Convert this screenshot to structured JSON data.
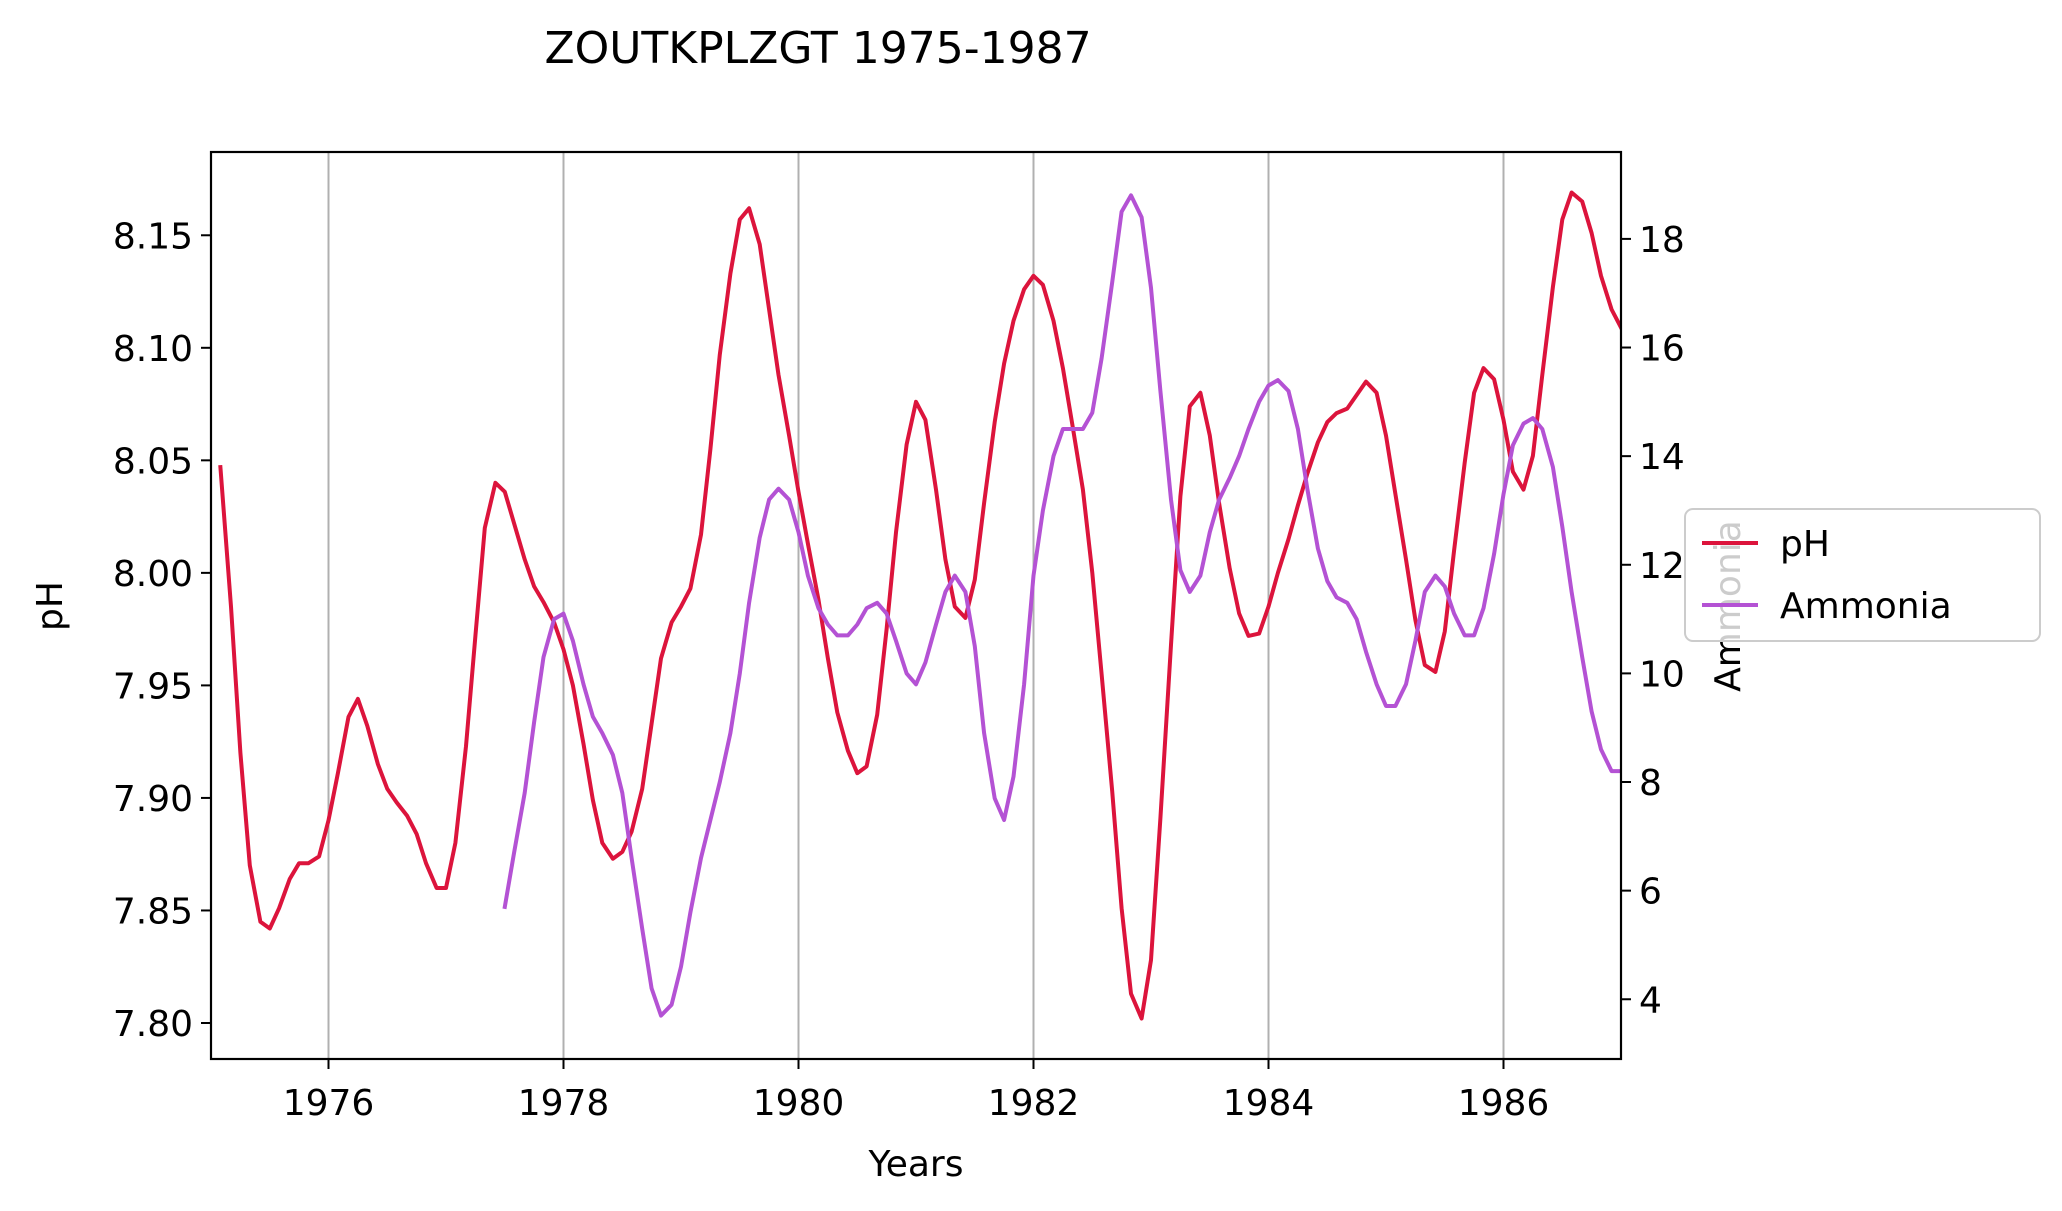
{
  "chart_data": {
    "type": "line",
    "title": "ZOUTKPLZGT 1975-1987",
    "xlabel": "Years",
    "ylabel_left": "pH",
    "ylabel_right": "Ammonia",
    "xlim": [
      1975.0,
      1987.0
    ],
    "ylim_left": [
      7.784,
      8.187
    ],
    "ylim_right": [
      2.9,
      19.6
    ],
    "x_ticks": [
      1976,
      1978,
      1980,
      1982,
      1984,
      1986
    ],
    "x_tick_labels": [
      "1976",
      "1978",
      "1980",
      "1982",
      "1984",
      "1986"
    ],
    "y_left_ticks": [
      7.8,
      7.85,
      7.9,
      7.95,
      8.0,
      8.05,
      8.1,
      8.15
    ],
    "y_left_tick_labels": [
      "7.80",
      "7.85",
      "7.90",
      "7.95",
      "8.00",
      "8.05",
      "8.10",
      "8.15"
    ],
    "y_right_ticks": [
      4,
      6,
      8,
      10,
      12,
      14,
      16,
      18
    ],
    "y_right_tick_labels": [
      "4",
      "6",
      "8",
      "10",
      "12",
      "14",
      "16",
      "18"
    ],
    "grid": "vertical at x ticks",
    "legend_placement": "right, outside plot",
    "series": [
      {
        "name": "pH",
        "axis": "left",
        "color": "#dc143c",
        "points": [
          [
            1975.08,
            8.047
          ],
          [
            1975.17,
            7.985
          ],
          [
            1975.25,
            7.92
          ],
          [
            1975.33,
            7.87
          ],
          [
            1975.42,
            7.845
          ],
          [
            1975.5,
            7.842
          ],
          [
            1975.58,
            7.851
          ],
          [
            1975.67,
            7.864
          ],
          [
            1975.75,
            7.871
          ],
          [
            1975.83,
            7.871
          ],
          [
            1975.92,
            7.874
          ],
          [
            1976.0,
            7.89
          ],
          [
            1976.08,
            7.911
          ],
          [
            1976.17,
            7.936
          ],
          [
            1976.25,
            7.944
          ],
          [
            1976.33,
            7.932
          ],
          [
            1976.42,
            7.915
          ],
          [
            1976.5,
            7.904
          ],
          [
            1976.58,
            7.898
          ],
          [
            1976.67,
            7.892
          ],
          [
            1976.75,
            7.884
          ],
          [
            1976.83,
            7.871
          ],
          [
            1976.92,
            7.86
          ],
          [
            1977.0,
            7.86
          ],
          [
            1977.08,
            7.88
          ],
          [
            1977.17,
            7.923
          ],
          [
            1977.25,
            7.972
          ],
          [
            1977.33,
            8.02
          ],
          [
            1977.42,
            8.04
          ],
          [
            1977.5,
            8.036
          ],
          [
            1977.58,
            8.022
          ],
          [
            1977.67,
            8.006
          ],
          [
            1977.75,
            7.994
          ],
          [
            1977.83,
            7.987
          ],
          [
            1977.92,
            7.978
          ],
          [
            1978.0,
            7.966
          ],
          [
            1978.08,
            7.95
          ],
          [
            1978.17,
            7.924
          ],
          [
            1978.25,
            7.899
          ],
          [
            1978.33,
            7.88
          ],
          [
            1978.42,
            7.873
          ],
          [
            1978.5,
            7.876
          ],
          [
            1978.58,
            7.885
          ],
          [
            1978.67,
            7.904
          ],
          [
            1978.75,
            7.933
          ],
          [
            1978.83,
            7.962
          ],
          [
            1978.92,
            7.978
          ],
          [
            1979.0,
            7.985
          ],
          [
            1979.08,
            7.993
          ],
          [
            1979.17,
            8.017
          ],
          [
            1979.25,
            8.055
          ],
          [
            1979.33,
            8.097
          ],
          [
            1979.42,
            8.133
          ],
          [
            1979.5,
            8.157
          ],
          [
            1979.58,
            8.162
          ],
          [
            1979.67,
            8.146
          ],
          [
            1979.75,
            8.117
          ],
          [
            1979.83,
            8.088
          ],
          [
            1979.92,
            8.061
          ],
          [
            1980.0,
            8.036
          ],
          [
            1980.08,
            8.013
          ],
          [
            1980.17,
            7.988
          ],
          [
            1980.25,
            7.962
          ],
          [
            1980.33,
            7.938
          ],
          [
            1980.42,
            7.921
          ],
          [
            1980.5,
            7.911
          ],
          [
            1980.58,
            7.914
          ],
          [
            1980.67,
            7.937
          ],
          [
            1980.75,
            7.975
          ],
          [
            1980.83,
            8.018
          ],
          [
            1980.92,
            8.057
          ],
          [
            1981.0,
            8.076
          ],
          [
            1981.08,
            8.068
          ],
          [
            1981.17,
            8.037
          ],
          [
            1981.25,
            8.006
          ],
          [
            1981.33,
            7.985
          ],
          [
            1981.42,
            7.98
          ],
          [
            1981.5,
            7.997
          ],
          [
            1981.58,
            8.031
          ],
          [
            1981.67,
            8.067
          ],
          [
            1981.75,
            8.093
          ],
          [
            1981.83,
            8.112
          ],
          [
            1981.92,
            8.126
          ],
          [
            1982.0,
            8.132
          ],
          [
            1982.08,
            8.128
          ],
          [
            1982.17,
            8.112
          ],
          [
            1982.25,
            8.091
          ],
          [
            1982.33,
            8.066
          ],
          [
            1982.42,
            8.037
          ],
          [
            1982.5,
            8.0
          ],
          [
            1982.58,
            7.955
          ],
          [
            1982.67,
            7.903
          ],
          [
            1982.75,
            7.851
          ],
          [
            1982.83,
            7.813
          ],
          [
            1982.92,
            7.802
          ],
          [
            1983.0,
            7.828
          ],
          [
            1983.08,
            7.891
          ],
          [
            1983.17,
            7.968
          ],
          [
            1983.25,
            8.034
          ],
          [
            1983.33,
            8.074
          ],
          [
            1983.42,
            8.08
          ],
          [
            1983.5,
            8.061
          ],
          [
            1983.58,
            8.031
          ],
          [
            1983.67,
            8.002
          ],
          [
            1983.75,
            7.982
          ],
          [
            1983.83,
            7.972
          ],
          [
            1983.92,
            7.973
          ],
          [
            1984.0,
            7.985
          ],
          [
            1984.08,
            8.0
          ],
          [
            1984.17,
            8.015
          ],
          [
            1984.25,
            8.03
          ],
          [
            1984.33,
            8.044
          ],
          [
            1984.42,
            8.058
          ],
          [
            1984.5,
            8.067
          ],
          [
            1984.58,
            8.071
          ],
          [
            1984.67,
            8.073
          ],
          [
            1984.75,
            8.079
          ],
          [
            1984.83,
            8.085
          ],
          [
            1984.92,
            8.08
          ],
          [
            1985.0,
            8.061
          ],
          [
            1985.08,
            8.035
          ],
          [
            1985.17,
            8.006
          ],
          [
            1985.25,
            7.979
          ],
          [
            1985.33,
            7.959
          ],
          [
            1985.42,
            7.956
          ],
          [
            1985.5,
            7.974
          ],
          [
            1985.58,
            8.01
          ],
          [
            1985.67,
            8.049
          ],
          [
            1985.75,
            8.08
          ],
          [
            1985.83,
            8.091
          ],
          [
            1985.92,
            8.086
          ],
          [
            1986.0,
            8.068
          ],
          [
            1986.08,
            8.045
          ],
          [
            1986.17,
            8.037
          ],
          [
            1986.25,
            8.052
          ],
          [
            1986.33,
            8.088
          ],
          [
            1986.42,
            8.127
          ],
          [
            1986.5,
            8.157
          ],
          [
            1986.58,
            8.169
          ],
          [
            1986.67,
            8.165
          ],
          [
            1986.75,
            8.151
          ],
          [
            1986.83,
            8.132
          ],
          [
            1986.92,
            8.117
          ],
          [
            1987.0,
            8.109
          ]
        ]
      },
      {
        "name": "Ammonia",
        "axis": "right",
        "color": "#b452d4",
        "points": [
          [
            1977.5,
            5.7
          ],
          [
            1977.58,
            6.7
          ],
          [
            1977.67,
            7.8
          ],
          [
            1977.75,
            9.1
          ],
          [
            1977.83,
            10.3
          ],
          [
            1977.92,
            11.0
          ],
          [
            1978.0,
            11.1
          ],
          [
            1978.08,
            10.6
          ],
          [
            1978.17,
            9.8
          ],
          [
            1978.25,
            9.2
          ],
          [
            1978.33,
            8.9
          ],
          [
            1978.42,
            8.5
          ],
          [
            1978.5,
            7.8
          ],
          [
            1978.58,
            6.6
          ],
          [
            1978.67,
            5.3
          ],
          [
            1978.75,
            4.2
          ],
          [
            1978.83,
            3.7
          ],
          [
            1978.92,
            3.9
          ],
          [
            1979.0,
            4.6
          ],
          [
            1979.08,
            5.6
          ],
          [
            1979.17,
            6.6
          ],
          [
            1979.25,
            7.3
          ],
          [
            1979.33,
            8.0
          ],
          [
            1979.42,
            8.9
          ],
          [
            1979.5,
            10.0
          ],
          [
            1979.58,
            11.3
          ],
          [
            1979.67,
            12.5
          ],
          [
            1979.75,
            13.2
          ],
          [
            1979.83,
            13.4
          ],
          [
            1979.92,
            13.2
          ],
          [
            1980.0,
            12.6
          ],
          [
            1980.08,
            11.8
          ],
          [
            1980.17,
            11.2
          ],
          [
            1980.25,
            10.9
          ],
          [
            1980.33,
            10.7
          ],
          [
            1980.42,
            10.7
          ],
          [
            1980.5,
            10.9
          ],
          [
            1980.58,
            11.2
          ],
          [
            1980.67,
            11.3
          ],
          [
            1980.75,
            11.1
          ],
          [
            1980.83,
            10.6
          ],
          [
            1980.92,
            10.0
          ],
          [
            1981.0,
            9.8
          ],
          [
            1981.08,
            10.2
          ],
          [
            1981.17,
            10.9
          ],
          [
            1981.25,
            11.5
          ],
          [
            1981.33,
            11.8
          ],
          [
            1981.42,
            11.5
          ],
          [
            1981.5,
            10.5
          ],
          [
            1981.58,
            8.9
          ],
          [
            1981.67,
            7.7
          ],
          [
            1981.75,
            7.3
          ],
          [
            1981.83,
            8.1
          ],
          [
            1981.92,
            9.8
          ],
          [
            1982.0,
            11.8
          ],
          [
            1982.08,
            13.0
          ],
          [
            1982.17,
            14.0
          ],
          [
            1982.25,
            14.5
          ],
          [
            1982.33,
            14.5
          ],
          [
            1982.42,
            14.5
          ],
          [
            1982.5,
            14.8
          ],
          [
            1982.58,
            15.8
          ],
          [
            1982.67,
            17.2
          ],
          [
            1982.75,
            18.5
          ],
          [
            1982.83,
            18.8
          ],
          [
            1982.92,
            18.4
          ],
          [
            1983.0,
            17.1
          ],
          [
            1983.08,
            15.2
          ],
          [
            1983.17,
            13.2
          ],
          [
            1983.25,
            11.9
          ],
          [
            1983.33,
            11.5
          ],
          [
            1983.42,
            11.8
          ],
          [
            1983.5,
            12.6
          ],
          [
            1983.58,
            13.2
          ],
          [
            1983.67,
            13.6
          ],
          [
            1983.75,
            14.0
          ],
          [
            1983.83,
            14.5
          ],
          [
            1983.92,
            15.0
          ],
          [
            1984.0,
            15.3
          ],
          [
            1984.08,
            15.4
          ],
          [
            1984.17,
            15.2
          ],
          [
            1984.25,
            14.5
          ],
          [
            1984.33,
            13.4
          ],
          [
            1984.42,
            12.3
          ],
          [
            1984.5,
            11.7
          ],
          [
            1984.58,
            11.4
          ],
          [
            1984.67,
            11.3
          ],
          [
            1984.75,
            11.0
          ],
          [
            1984.83,
            10.4
          ],
          [
            1984.92,
            9.8
          ],
          [
            1985.0,
            9.4
          ],
          [
            1985.08,
            9.4
          ],
          [
            1985.17,
            9.8
          ],
          [
            1985.25,
            10.6
          ],
          [
            1985.33,
            11.5
          ],
          [
            1985.42,
            11.8
          ],
          [
            1985.5,
            11.6
          ],
          [
            1985.58,
            11.1
          ],
          [
            1985.67,
            10.7
          ],
          [
            1985.75,
            10.7
          ],
          [
            1985.83,
            11.2
          ],
          [
            1985.92,
            12.2
          ],
          [
            1986.0,
            13.3
          ],
          [
            1986.08,
            14.2
          ],
          [
            1986.17,
            14.6
          ],
          [
            1986.25,
            14.7
          ],
          [
            1986.33,
            14.5
          ],
          [
            1986.42,
            13.8
          ],
          [
            1986.5,
            12.7
          ],
          [
            1986.58,
            11.5
          ],
          [
            1986.67,
            10.3
          ],
          [
            1986.75,
            9.3
          ],
          [
            1986.83,
            8.6
          ],
          [
            1986.92,
            8.2
          ],
          [
            1987.0,
            8.2
          ]
        ]
      }
    ]
  }
}
